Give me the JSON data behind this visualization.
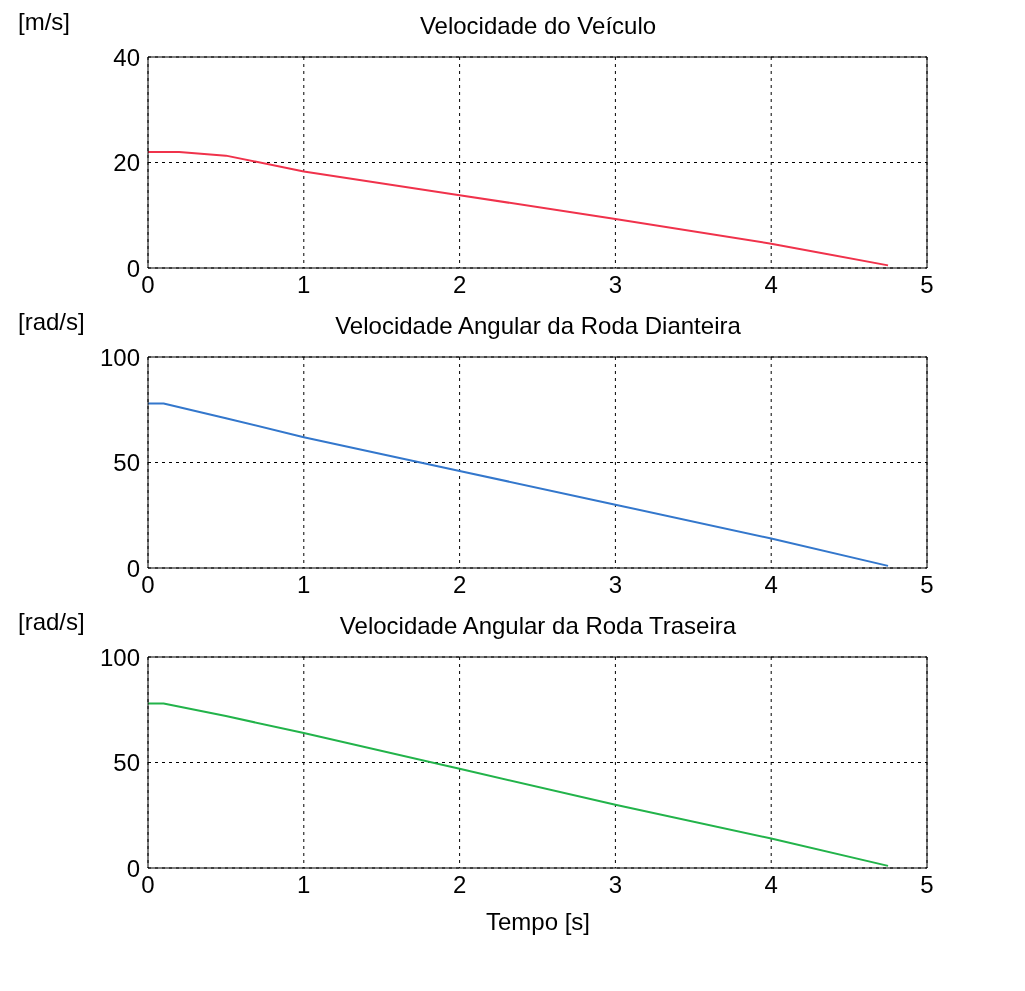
{
  "chart_data": [
    {
      "type": "line",
      "title": "Velocidade do Veículo",
      "ylabel": "[m/s]",
      "x": [
        0,
        0.2,
        0.5,
        1,
        2,
        3,
        4,
        4.75
      ],
      "values": [
        22,
        22,
        21.3,
        18.3,
        13.8,
        9.3,
        4.6,
        0.5
      ],
      "color": "#f0324b",
      "xlim": [
        0,
        5
      ],
      "xticks": [
        0,
        1,
        2,
        3,
        4,
        5
      ],
      "ylim": [
        0,
        40
      ],
      "yticks": [
        0,
        20,
        40
      ],
      "grid": true,
      "line_style": "solid",
      "marker": "none"
    },
    {
      "type": "line",
      "title": "Velocidade Angular da Roda Dianteira",
      "ylabel": "[rad/s]",
      "x": [
        0,
        0.1,
        0.5,
        1,
        2,
        3,
        4,
        4.75
      ],
      "values": [
        78,
        78,
        71,
        62,
        46,
        30,
        14,
        1
      ],
      "color": "#3377cc",
      "xlim": [
        0,
        5
      ],
      "xticks": [
        0,
        1,
        2,
        3,
        4,
        5
      ],
      "ylim": [
        0,
        100
      ],
      "yticks": [
        0,
        50,
        100
      ],
      "grid": true,
      "line_style": "solid",
      "marker": "none"
    },
    {
      "type": "line",
      "title": "Velocidade Angular da Roda Traseira",
      "ylabel": "[rad/s]",
      "xlabel": "Tempo [s]",
      "x": [
        0,
        0.1,
        0.5,
        1,
        2,
        3,
        4,
        4.75
      ],
      "values": [
        78,
        78,
        72,
        64,
        47,
        30,
        14,
        1
      ],
      "color": "#22b34a",
      "xlim": [
        0,
        5
      ],
      "xticks": [
        0,
        1,
        2,
        3,
        4,
        5
      ],
      "ylim": [
        0,
        100
      ],
      "yticks": [
        0,
        50,
        100
      ],
      "grid": true,
      "line_style": "solid",
      "marker": "none"
    }
  ]
}
